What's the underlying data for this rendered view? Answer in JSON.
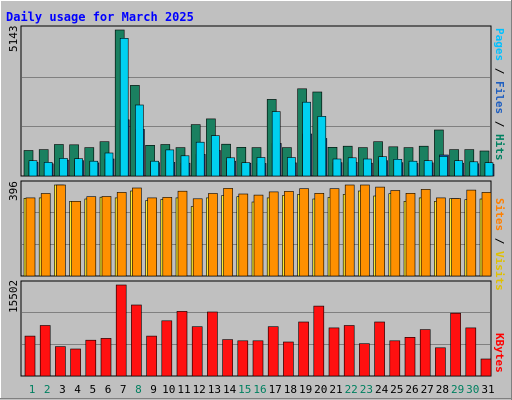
{
  "chart_data": {
    "type": "bar",
    "title": "Daily usage for March 2025",
    "categories": [
      "1",
      "2",
      "3",
      "4",
      "5",
      "6",
      "7",
      "8",
      "9",
      "10",
      "11",
      "12",
      "13",
      "14",
      "15",
      "16",
      "17",
      "18",
      "19",
      "20",
      "21",
      "22",
      "23",
      "24",
      "25",
      "26",
      "27",
      "28",
      "29",
      "30",
      "31"
    ],
    "weekend_days": [
      "1",
      "2",
      "8",
      "15",
      "16",
      "22",
      "23",
      "29",
      "30"
    ],
    "panels": [
      {
        "id": "top",
        "axis_max_label": "5143",
        "ylim": [
          0,
          5143
        ],
        "right_label": [
          {
            "text": "Pages",
            "color": "#00c0ff"
          },
          {
            "text": " / ",
            "color": "#000000"
          },
          {
            "text": "Files",
            "color": "#1f5fc0"
          },
          {
            "text": " / ",
            "color": "#000000"
          },
          {
            "text": "Hits",
            "color": "#008060"
          }
        ],
        "series": [
          {
            "name": "Hits",
            "color": "#1a8060",
            "values": [
              900,
              930,
              1110,
              1100,
              1000,
              1210,
              5143,
              3190,
              1080,
              1110,
              1000,
              1810,
              2010,
              1120,
              1010,
              1000,
              2700,
              1000,
              3070,
              2960,
              1010,
              1050,
              1000,
              1210,
              1030,
              1000,
              1050,
              1620,
              930,
              930,
              880
            ]
          },
          {
            "name": "Files",
            "color": "#1f5fc0",
            "values": [
              480,
              430,
              560,
              540,
              460,
              600,
              1980,
              1640,
              470,
              480,
              450,
              760,
              900,
              520,
              450,
              440,
              1150,
              460,
              1480,
              1320,
              470,
              480,
              450,
              540,
              470,
              440,
              460,
              740,
              450,
              430,
              410
            ]
          },
          {
            "name": "Pages",
            "color": "#00d0f0",
            "values": [
              540,
              480,
              620,
              610,
              520,
              810,
              4850,
              2500,
              520,
              920,
              710,
              1190,
              1420,
              640,
              470,
              650,
              2270,
              650,
              2600,
              2100,
              600,
              640,
              600,
              680,
              590,
              520,
              540,
              690,
              540,
              500,
              470
            ]
          }
        ]
      },
      {
        "id": "middle",
        "axis_max_label": "396",
        "ylim": [
          0,
          396
        ],
        "right_label": [
          {
            "text": "Sites",
            "color": "#ff8000"
          },
          {
            "text": " / ",
            "color": "#000000"
          },
          {
            "text": "Visits",
            "color": "#e0c000"
          }
        ],
        "series": [
          {
            "name": "Visits",
            "color": "#ffea2e",
            "values": [
              338,
              340,
              396,
              325,
              335,
              343,
              340,
              370,
              328,
              333,
              340,
              302,
              340,
              350,
              345,
              322,
              340,
              350,
              355,
              335,
              342,
              355,
              370,
              348,
              358,
              325,
              340,
              325,
              337,
              332,
              335
            ]
          },
          {
            "name": "Sites",
            "color": "#ff9000",
            "values": [
              340,
              359,
              396,
              325,
              345,
              346,
              364,
              383,
              340,
              342,
              369,
              336,
              359,
              381,
              357,
              352,
              366,
              368,
              380,
              360,
              380,
              396,
              396,
              387,
              372,
              360,
              377,
              340,
              337,
              374,
              364
            ]
          }
        ]
      },
      {
        "id": "bottom",
        "axis_max_label": "15502",
        "ylim": [
          0,
          15502
        ],
        "right_label": [
          {
            "text": "KBytes",
            "color": "#ff0000"
          }
        ],
        "series": [
          {
            "name": "KBytes",
            "color": "#ff1010",
            "values": [
              6800,
              8600,
              5000,
              4600,
              6100,
              6400,
              15500,
              12100,
              6800,
              9400,
              11000,
              8400,
              10900,
              6200,
              6000,
              6000,
              8400,
              5800,
              9200,
              11900,
              8200,
              8600,
              5500,
              9200,
              6000,
              6600,
              7900,
              4800,
              10700,
              8200,
              2900
            ]
          }
        ]
      }
    ]
  }
}
